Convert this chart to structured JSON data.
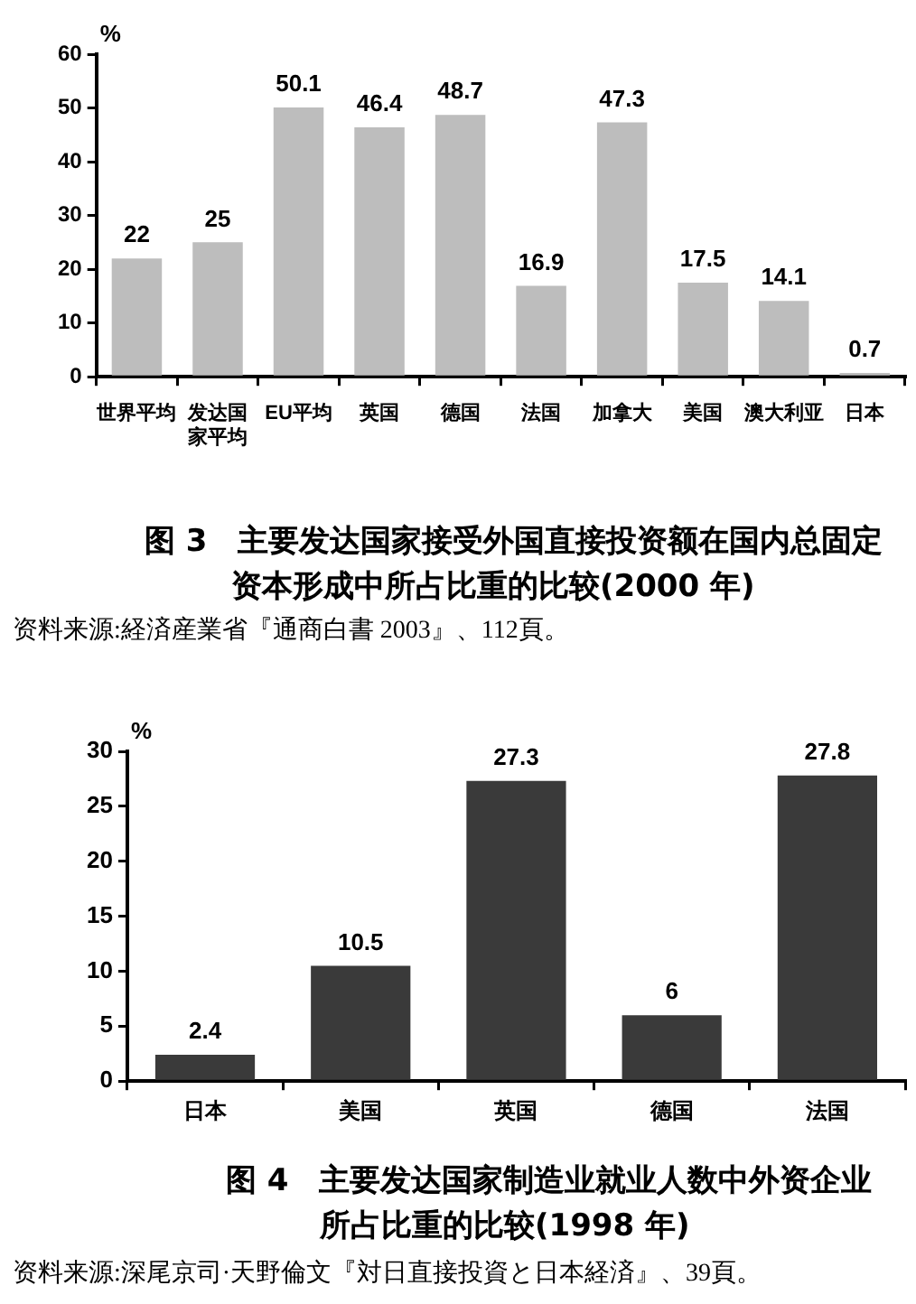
{
  "chart_data": [
    {
      "type": "bar",
      "title": "图 3　主要发达国家接受外国直接投资额在国内总固定资本形成中所占比重的比较(2000 年)",
      "ylabel": "%",
      "categories": [
        "世界平均",
        "发达国家平均",
        "EU平均",
        "英国",
        "德国",
        "法国",
        "加拿大",
        "美国",
        "澳大利亚",
        "日本"
      ],
      "values": [
        22,
        25,
        50.1,
        46.4,
        48.7,
        16.9,
        47.3,
        17.5,
        14.1,
        0.7
      ],
      "color": "#bdbdbd",
      "ylim": [
        0,
        60
      ],
      "yticks": [
        0,
        10,
        20,
        30,
        40,
        50,
        60
      ],
      "data_labels": true,
      "annotations": [
        "资料来源:経済産業省『通商白書 2003』、112頁。"
      ]
    },
    {
      "type": "bar",
      "title": "图 4　主要发达国家制造业就业人数中外资企业所占比重的比较(1998 年)",
      "ylabel": "%",
      "categories": [
        "日本",
        "美国",
        "英国",
        "德国",
        "法国"
      ],
      "values": [
        2.4,
        10.5,
        27.3,
        6,
        27.8
      ],
      "color": "#3a3a3a",
      "ylim": [
        0,
        30
      ],
      "yticks": [
        0,
        5,
        10,
        15,
        20,
        25,
        30
      ],
      "data_labels": true,
      "annotations": [
        "资料来源:深尾京司·天野倫文『対日直接投資と日本経済』、39頁。"
      ]
    }
  ]
}
